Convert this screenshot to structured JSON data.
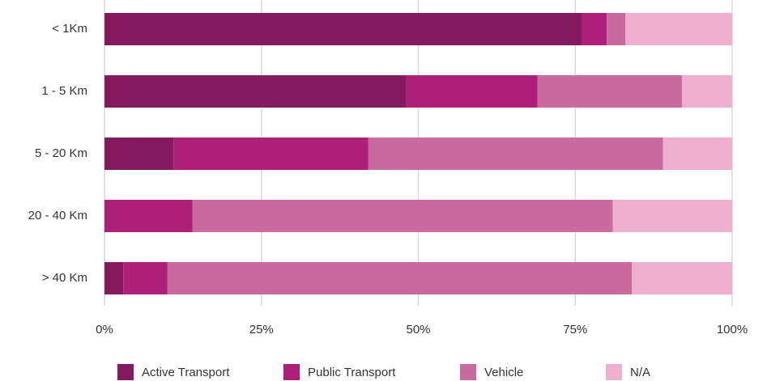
{
  "chart_data": {
    "type": "stacked_bar_horizontal",
    "categories": [
      "< 1Km",
      "1 - 5 Km",
      "5 - 20 Km",
      "20 - 40 Km",
      "> 40 Km"
    ],
    "series": [
      {
        "name": "Active Transport",
        "color": "#861a5e",
        "values": [
          76,
          48,
          11,
          0,
          3
        ]
      },
      {
        "name": "Public Transport",
        "color": "#ae1f7a",
        "values": [
          4,
          21,
          31,
          14,
          7
        ]
      },
      {
        "name": "Vehicle",
        "color": "#c96b9e",
        "values": [
          3,
          23,
          47,
          67,
          74
        ]
      },
      {
        "name": "N/A",
        "color": "#eeb0cf",
        "values": [
          17,
          8,
          11,
          19,
          16
        ]
      }
    ],
    "xlim": [
      0,
      100
    ],
    "xticks": [
      {
        "value": 0,
        "label": "0%"
      },
      {
        "value": 25,
        "label": "25%"
      },
      {
        "value": 50,
        "label": "50%"
      },
      {
        "value": 75,
        "label": "75%"
      },
      {
        "value": 100,
        "label": "100%"
      }
    ],
    "grid": true
  }
}
